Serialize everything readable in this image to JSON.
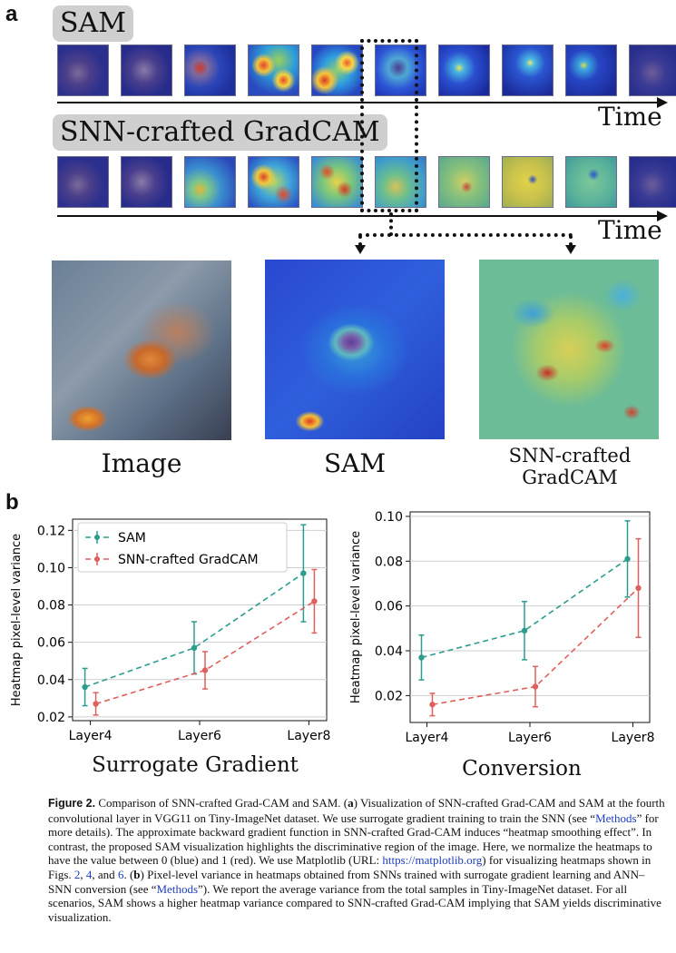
{
  "panel_a": {
    "letter": "a",
    "row1_label": "SAM",
    "row2_label": "SNN-crafted GradCAM",
    "time_label": "Time",
    "big_captions": [
      "Image",
      "SAM",
      "SNN-crafted GradCAM"
    ]
  },
  "panel_b": {
    "letter": "b"
  },
  "colors": {
    "sam": "#2a9d8f",
    "snn": "#e0605e"
  },
  "chart_data": [
    {
      "type": "line",
      "title": "Surrogate Gradient",
      "ylabel": "Heatmap pixel-level variance",
      "xlabel": "",
      "categories": [
        "Layer4",
        "Layer6",
        "Layer8"
      ],
      "ylim": [
        0.018,
        0.126
      ],
      "yticks": [
        "0.02",
        "0.04",
        "0.06",
        "0.08",
        "0.10",
        "0.12"
      ],
      "ytick_values": [
        0.02,
        0.04,
        0.06,
        0.08,
        0.1,
        0.12
      ],
      "legend": "top-left",
      "series": [
        {
          "name": "SAM",
          "values": [
            0.036,
            0.057,
            0.097
          ],
          "err": [
            0.01,
            0.014,
            0.026
          ]
        },
        {
          "name": "SNN-crafted GradCAM",
          "values": [
            0.027,
            0.045,
            0.082
          ],
          "err": [
            0.006,
            0.01,
            0.017
          ]
        }
      ]
    },
    {
      "type": "line",
      "title": "Conversion",
      "ylabel": "Heatmap pixel-level variance",
      "xlabel": "",
      "categories": [
        "Layer4",
        "Layer6",
        "Layer8"
      ],
      "ylim": [
        0.008,
        0.102
      ],
      "yticks": [
        "0.02",
        "0.04",
        "0.06",
        "0.08",
        "0.10"
      ],
      "ytick_values": [
        0.02,
        0.04,
        0.06,
        0.08,
        0.1
      ],
      "legend": "none",
      "series": [
        {
          "name": "SAM",
          "values": [
            0.037,
            0.049,
            0.081
          ],
          "err": [
            0.01,
            0.013,
            0.017
          ]
        },
        {
          "name": "SNN-crafted GradCAM",
          "values": [
            0.016,
            0.024,
            0.068
          ],
          "err": [
            0.005,
            0.009,
            0.022
          ]
        }
      ]
    }
  ],
  "caption": {
    "fig_label": "Figure 2.",
    "s1": "Comparison of SNN-crafted Grad-CAM and SAM. (",
    "a": "a",
    "s2": ") Visualization of SNN-crafted Grad-CAM and SAM at the fourth convolutional layer in VGG11 on Tiny-ImageNet dataset. We use surrogate gradient training to train the SNN (see “",
    "methods1": "Methods",
    "s3": "” for more details). The approximate backward gradient function in SNN-crafted Grad-CAM induces “heatmap smoothing effect”. In contrast, the proposed SAM visualization highlights the discriminative region of the image. Here, we normalize the heatmaps to have the value between 0 (blue) and 1 (red). We use Matplotlib (URL: ",
    "url": "https://matplotlib.org",
    "s4": ") for visualizing heatmaps shown in Figs. ",
    "f2": "2",
    "c1": ", ",
    "f4": "4",
    "c2": ", and ",
    "f6": "6",
    "s5": ". (",
    "b": "b",
    "s6": ") Pixel-level variance in heatmaps obtained from SNNs trained with surrogate gradient learning and ANN–SNN conversion (see “",
    "methods2": "Methods",
    "s7": "”). We report the average variance from the total samples in Tiny-ImageNet dataset. For all scenarios, SAM shows a higher heatmap variance compared to SNN-crafted Grad-CAM implying that SAM yields discriminative visualization."
  }
}
